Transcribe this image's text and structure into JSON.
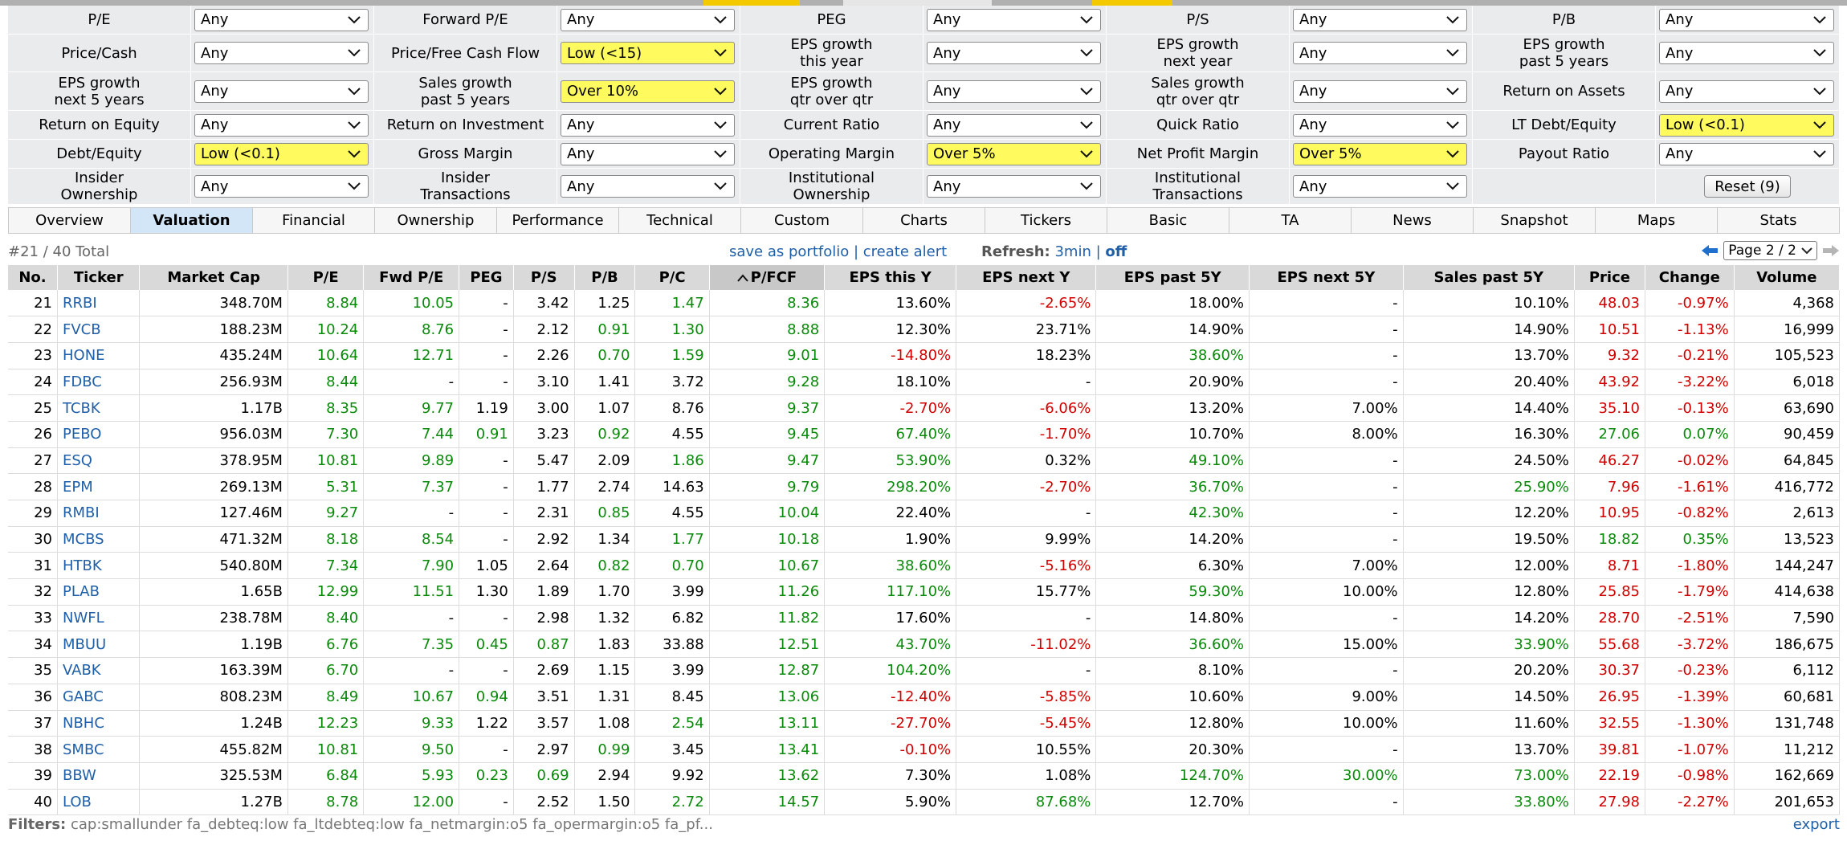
{
  "colors": {
    "highlight": "#fffa5e",
    "link": "#1f5fa8",
    "positive": "#0a8a0a",
    "negative": "#d00000",
    "tab_active": "#d3e6f8",
    "header": "#d9d9d9"
  },
  "filters": [
    [
      {
        "label": "P/E",
        "value": "Any"
      },
      {
        "label": "Forward P/E",
        "value": "Any"
      },
      {
        "label": "PEG",
        "value": "Any"
      },
      {
        "label": "P/S",
        "value": "Any"
      },
      {
        "label": "P/B",
        "value": "Any"
      }
    ],
    [
      {
        "label": "Price/Cash",
        "value": "Any"
      },
      {
        "label": "Price/Free Cash Flow",
        "value": "Low (<15)",
        "active": true
      },
      {
        "label": "EPS growth\nthis year",
        "value": "Any"
      },
      {
        "label": "EPS growth\nnext year",
        "value": "Any"
      },
      {
        "label": "EPS growth\npast 5 years",
        "value": "Any"
      }
    ],
    [
      {
        "label": "EPS growth\nnext 5 years",
        "value": "Any"
      },
      {
        "label": "Sales growth\npast 5 years",
        "value": "Over 10%",
        "active": true
      },
      {
        "label": "EPS growth\nqtr over qtr",
        "value": "Any"
      },
      {
        "label": "Sales growth\nqtr over qtr",
        "value": "Any"
      },
      {
        "label": "Return on Assets",
        "value": "Any"
      }
    ],
    [
      {
        "label": "Return on Equity",
        "value": "Any"
      },
      {
        "label": "Return on Investment",
        "value": "Any"
      },
      {
        "label": "Current Ratio",
        "value": "Any"
      },
      {
        "label": "Quick Ratio",
        "value": "Any"
      },
      {
        "label": "LT Debt/Equity",
        "value": "Low (<0.1)",
        "active": true
      }
    ],
    [
      {
        "label": "Debt/Equity",
        "value": "Low (<0.1)",
        "active": true
      },
      {
        "label": "Gross Margin",
        "value": "Any"
      },
      {
        "label": "Operating Margin",
        "value": "Over 5%",
        "active": true
      },
      {
        "label": "Net Profit Margin",
        "value": "Over 5%",
        "active": true
      },
      {
        "label": "Payout Ratio",
        "value": "Any"
      }
    ],
    [
      {
        "label": "Insider\nOwnership",
        "value": "Any"
      },
      {
        "label": "Insider\nTransactions",
        "value": "Any"
      },
      {
        "label": "Institutional\nOwnership",
        "value": "Any"
      },
      {
        "label": "Institutional\nTransactions",
        "value": "Any"
      }
    ]
  ],
  "reset_label": "Reset (9)",
  "tabs": [
    "Overview",
    "Valuation",
    "Financial",
    "Ownership",
    "Performance",
    "Technical",
    "Custom",
    "Charts",
    "Tickers",
    "Basic",
    "TA",
    "News",
    "Snapshot",
    "Maps",
    "Stats"
  ],
  "active_tab": "Valuation",
  "info": {
    "total": "#21 / 40 Total",
    "save_portfolio": "save as portfolio",
    "create_alert": "create alert",
    "refresh_label": "Refresh:",
    "refresh_value": "3min",
    "refresh_off": "off",
    "page": "Page 2 / 2"
  },
  "table": {
    "columns": [
      "No.",
      "Ticker",
      "Market Cap",
      "P/E",
      "Fwd P/E",
      "PEG",
      "P/S",
      "P/B",
      "P/C",
      "P/FCF",
      "EPS this Y",
      "EPS next Y",
      "EPS past 5Y",
      "EPS next 5Y",
      "Sales past 5Y",
      "Price",
      "Change",
      "Volume"
    ],
    "sorted_column": "P/FCF",
    "rows": [
      [
        "21",
        "RRBI",
        "348.70M",
        "8.84",
        "10.05",
        "-",
        "3.42",
        "1.25",
        "1.47",
        "8.36",
        "13.60%",
        "-2.65%",
        "18.00%",
        "-",
        "10.10%",
        "48.03",
        "-0.97%",
        "4,368"
      ],
      [
        "22",
        "FVCB",
        "188.23M",
        "10.24",
        "8.76",
        "-",
        "2.12",
        "0.91",
        "1.30",
        "8.88",
        "12.30%",
        "23.71%",
        "14.90%",
        "-",
        "14.90%",
        "10.51",
        "-1.13%",
        "16,999"
      ],
      [
        "23",
        "HONE",
        "435.24M",
        "10.64",
        "12.71",
        "-",
        "2.26",
        "0.70",
        "1.59",
        "9.01",
        "-14.80%",
        "18.23%",
        "38.60%",
        "-",
        "13.70%",
        "9.32",
        "-0.21%",
        "105,523"
      ],
      [
        "24",
        "FDBC",
        "256.93M",
        "8.44",
        "-",
        "-",
        "3.10",
        "1.41",
        "3.72",
        "9.28",
        "18.10%",
        "-",
        "20.90%",
        "-",
        "20.40%",
        "43.92",
        "-3.22%",
        "6,018"
      ],
      [
        "25",
        "TCBK",
        "1.17B",
        "8.35",
        "9.77",
        "1.19",
        "3.00",
        "1.07",
        "8.76",
        "9.37",
        "-2.70%",
        "-6.06%",
        "13.20%",
        "7.00%",
        "14.40%",
        "35.10",
        "-0.13%",
        "63,690"
      ],
      [
        "26",
        "PEBO",
        "956.03M",
        "7.30",
        "7.44",
        "0.91",
        "3.23",
        "0.92",
        "4.55",
        "9.45",
        "67.40%",
        "-1.70%",
        "10.70%",
        "8.00%",
        "16.30%",
        "27.06",
        "0.07%",
        "90,459"
      ],
      [
        "27",
        "ESQ",
        "378.95M",
        "10.81",
        "9.89",
        "-",
        "5.47",
        "2.09",
        "1.86",
        "9.47",
        "53.90%",
        "0.32%",
        "49.10%",
        "-",
        "24.50%",
        "46.27",
        "-0.02%",
        "64,845"
      ],
      [
        "28",
        "EPM",
        "269.13M",
        "5.31",
        "7.37",
        "-",
        "1.77",
        "2.74",
        "14.63",
        "9.79",
        "298.20%",
        "-2.70%",
        "36.70%",
        "-",
        "25.90%",
        "7.96",
        "-1.61%",
        "416,772"
      ],
      [
        "29",
        "RMBI",
        "127.46M",
        "9.27",
        "-",
        "-",
        "2.31",
        "0.85",
        "4.55",
        "10.04",
        "22.40%",
        "-",
        "42.30%",
        "-",
        "12.20%",
        "10.95",
        "-0.82%",
        "2,613"
      ],
      [
        "30",
        "MCBS",
        "471.32M",
        "8.18",
        "8.54",
        "-",
        "2.92",
        "1.34",
        "1.77",
        "10.18",
        "1.90%",
        "9.99%",
        "14.20%",
        "-",
        "19.50%",
        "18.82",
        "0.35%",
        "13,523"
      ],
      [
        "31",
        "HTBK",
        "540.80M",
        "7.34",
        "7.90",
        "1.05",
        "2.64",
        "0.82",
        "0.70",
        "10.67",
        "38.60%",
        "-5.16%",
        "6.30%",
        "7.00%",
        "12.00%",
        "8.71",
        "-1.80%",
        "144,247"
      ],
      [
        "32",
        "PLAB",
        "1.65B",
        "12.99",
        "11.51",
        "1.30",
        "1.89",
        "1.70",
        "3.99",
        "11.26",
        "117.10%",
        "15.77%",
        "59.30%",
        "10.00%",
        "12.80%",
        "25.85",
        "-1.79%",
        "414,638"
      ],
      [
        "33",
        "NWFL",
        "238.78M",
        "8.40",
        "-",
        "-",
        "2.98",
        "1.32",
        "6.82",
        "11.82",
        "17.60%",
        "-",
        "14.80%",
        "-",
        "14.20%",
        "28.70",
        "-2.51%",
        "7,590"
      ],
      [
        "34",
        "MBUU",
        "1.19B",
        "6.76",
        "7.35",
        "0.45",
        "0.87",
        "1.83",
        "33.88",
        "12.51",
        "43.70%",
        "-11.02%",
        "36.60%",
        "15.00%",
        "33.90%",
        "55.68",
        "-3.72%",
        "186,675"
      ],
      [
        "35",
        "VABK",
        "163.39M",
        "6.70",
        "-",
        "-",
        "2.69",
        "1.15",
        "3.99",
        "12.87",
        "104.20%",
        "-",
        "8.10%",
        "-",
        "20.20%",
        "30.37",
        "-0.23%",
        "6,112"
      ],
      [
        "36",
        "GABC",
        "808.23M",
        "8.49",
        "10.67",
        "0.94",
        "3.51",
        "1.31",
        "8.45",
        "13.06",
        "-12.40%",
        "-5.85%",
        "10.60%",
        "9.00%",
        "14.50%",
        "26.95",
        "-1.39%",
        "60,681"
      ],
      [
        "37",
        "NBHC",
        "1.24B",
        "12.23",
        "9.33",
        "1.22",
        "3.57",
        "1.08",
        "2.54",
        "13.11",
        "-27.70%",
        "-5.45%",
        "12.80%",
        "10.00%",
        "11.60%",
        "32.55",
        "-1.30%",
        "131,748"
      ],
      [
        "38",
        "SMBC",
        "455.82M",
        "10.81",
        "9.50",
        "-",
        "2.97",
        "0.99",
        "3.45",
        "13.41",
        "-0.10%",
        "10.55%",
        "20.30%",
        "-",
        "13.70%",
        "39.81",
        "-1.07%",
        "11,212"
      ],
      [
        "39",
        "BBW",
        "325.53M",
        "6.84",
        "5.93",
        "0.23",
        "0.69",
        "2.94",
        "9.92",
        "13.62",
        "7.30%",
        "1.08%",
        "124.70%",
        "30.00%",
        "73.00%",
        "22.19",
        "-0.98%",
        "162,669"
      ],
      [
        "40",
        "LOB",
        "1.27B",
        "8.78",
        "12.00",
        "-",
        "2.52",
        "1.50",
        "2.72",
        "14.57",
        "5.90%",
        "87.68%",
        "12.70%",
        "-",
        "33.80%",
        "27.98",
        "-2.27%",
        "201,653"
      ]
    ],
    "cell_colors": [
      [
        "",
        "",
        "",
        "pos",
        "pos",
        "",
        "",
        "",
        "pos",
        "pos",
        "",
        "neg",
        "",
        "",
        "",
        "neg",
        "neg",
        ""
      ],
      [
        "",
        "",
        "",
        "pos",
        "pos",
        "",
        "",
        "pos",
        "pos",
        "pos",
        "",
        "",
        "",
        "",
        "",
        "neg",
        "neg",
        ""
      ],
      [
        "",
        "",
        "",
        "pos",
        "pos",
        "",
        "",
        "pos",
        "pos",
        "pos",
        "neg",
        "",
        "pos",
        "",
        "",
        "neg",
        "neg",
        ""
      ],
      [
        "",
        "",
        "",
        "pos",
        "",
        "",
        "",
        "",
        "",
        "pos",
        "",
        "",
        "",
        "",
        "",
        "neg",
        "neg",
        ""
      ],
      [
        "",
        "",
        "",
        "pos",
        "pos",
        "",
        "",
        "",
        "",
        "pos",
        "neg",
        "neg",
        "",
        "",
        "",
        "neg",
        "neg",
        ""
      ],
      [
        "",
        "",
        "",
        "pos",
        "pos",
        "pos",
        "",
        "pos",
        "",
        "pos",
        "pos",
        "neg",
        "",
        "",
        "",
        "pos",
        "pos",
        ""
      ],
      [
        "",
        "",
        "",
        "pos",
        "pos",
        "",
        "",
        "",
        "pos",
        "pos",
        "pos",
        "",
        "pos",
        "",
        "",
        "neg",
        "neg",
        ""
      ],
      [
        "",
        "",
        "",
        "pos",
        "pos",
        "",
        "",
        "",
        "",
        "pos",
        "pos",
        "neg",
        "pos",
        "",
        "pos",
        "neg",
        "neg",
        ""
      ],
      [
        "",
        "",
        "",
        "pos",
        "",
        "",
        "",
        "pos",
        "",
        "pos",
        "",
        "",
        "pos",
        "",
        "",
        "neg",
        "neg",
        ""
      ],
      [
        "",
        "",
        "",
        "pos",
        "pos",
        "",
        "",
        "",
        "pos",
        "pos",
        "",
        "",
        "",
        "",
        "",
        "pos",
        "pos",
        ""
      ],
      [
        "",
        "",
        "",
        "pos",
        "pos",
        "",
        "",
        "pos",
        "pos",
        "pos",
        "pos",
        "neg",
        "",
        "",
        "",
        "neg",
        "neg",
        ""
      ],
      [
        "",
        "",
        "",
        "pos",
        "pos",
        "",
        "",
        "",
        "",
        "pos",
        "pos",
        "",
        "pos",
        "",
        "",
        "neg",
        "neg",
        ""
      ],
      [
        "",
        "",
        "",
        "pos",
        "",
        "",
        "",
        "",
        "",
        "pos",
        "",
        "",
        "",
        "",
        "",
        "neg",
        "neg",
        ""
      ],
      [
        "",
        "",
        "",
        "pos",
        "pos",
        "pos",
        "pos",
        "",
        "",
        "pos",
        "pos",
        "neg",
        "pos",
        "",
        "pos",
        "neg",
        "neg",
        ""
      ],
      [
        "",
        "",
        "",
        "pos",
        "",
        "",
        "",
        "",
        "",
        "pos",
        "pos",
        "",
        "",
        "",
        "",
        "neg",
        "neg",
        ""
      ],
      [
        "",
        "",
        "",
        "pos",
        "pos",
        "pos",
        "",
        "",
        "",
        "pos",
        "neg",
        "neg",
        "",
        "",
        "",
        "neg",
        "neg",
        ""
      ],
      [
        "",
        "",
        "",
        "pos",
        "pos",
        "",
        "",
        "",
        "pos",
        "pos",
        "neg",
        "neg",
        "",
        "",
        "",
        "neg",
        "neg",
        ""
      ],
      [
        "",
        "",
        "",
        "pos",
        "pos",
        "",
        "",
        "pos",
        "",
        "pos",
        "neg",
        "",
        "",
        "",
        "",
        "neg",
        "neg",
        ""
      ],
      [
        "",
        "",
        "",
        "pos",
        "pos",
        "pos",
        "pos",
        "",
        "",
        "pos",
        "",
        "",
        "pos",
        "pos",
        "pos",
        "neg",
        "neg",
        ""
      ],
      [
        "",
        "",
        "",
        "pos",
        "pos",
        "",
        "",
        "",
        "pos",
        "pos",
        "",
        "pos",
        "",
        "",
        "pos",
        "neg",
        "neg",
        ""
      ]
    ]
  },
  "footer": {
    "label": "Filters:",
    "value": "cap:smallunder fa_debteq:low fa_ltdebteq:low fa_netmargin:o5 fa_opermargin:o5 fa_pf...",
    "export": "export"
  },
  "icons": {
    "dropdown": "chevron-down-icon",
    "sort": "sort-asc-icon",
    "prev": "arrow-left-icon",
    "next": "arrow-right-icon"
  }
}
